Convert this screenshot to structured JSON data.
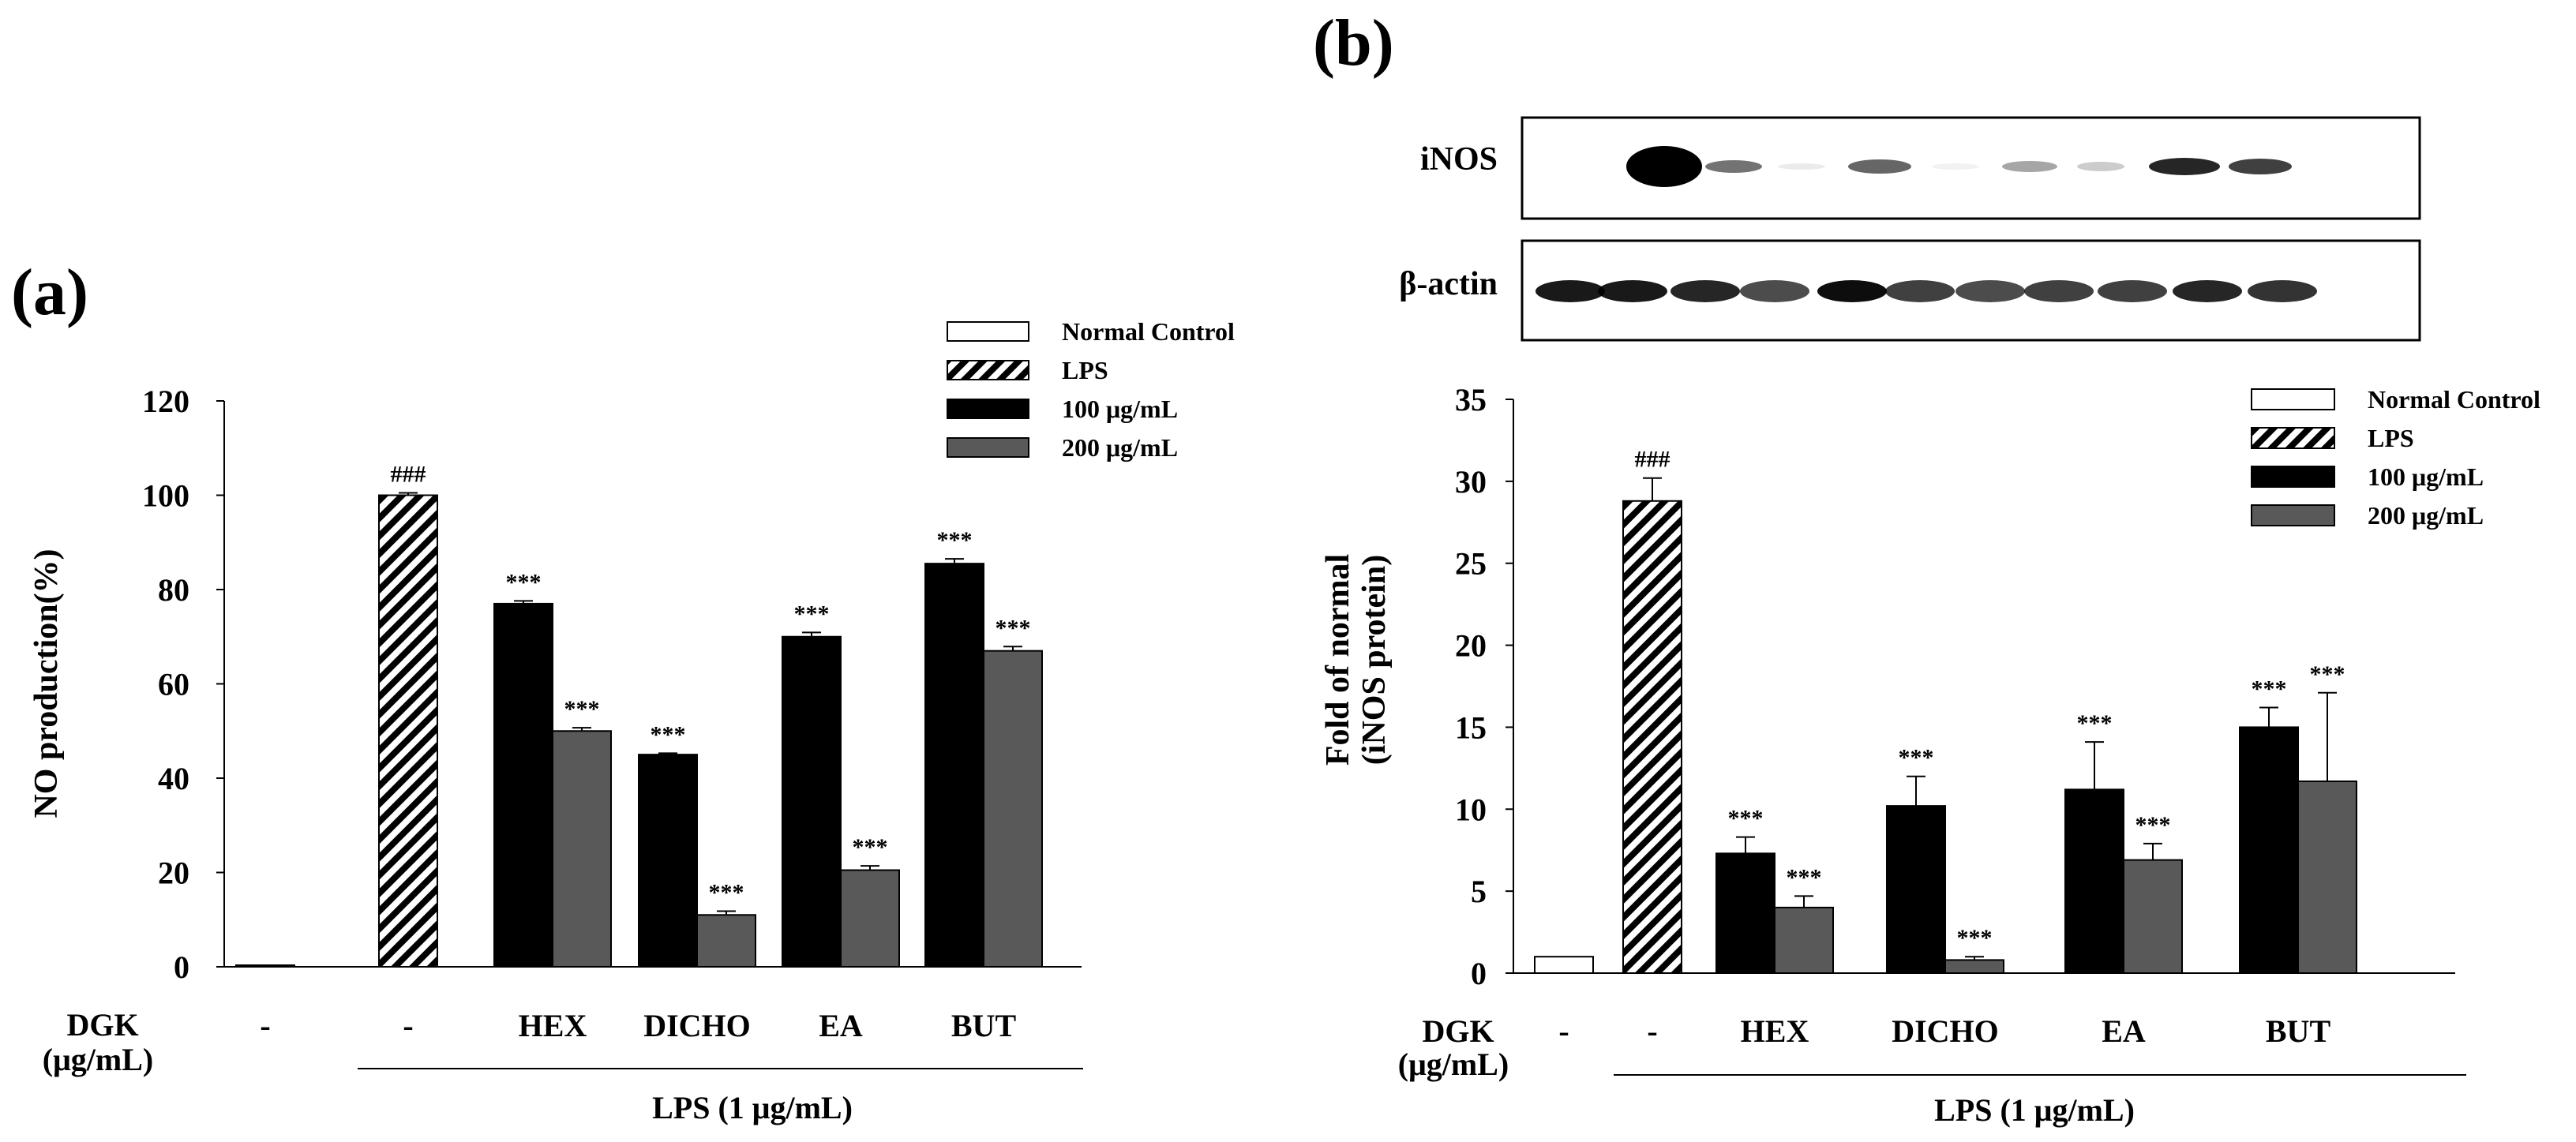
{
  "panel_a_label": "(a)",
  "panel_b_label": "(b)",
  "blot": {
    "row_labels": [
      "iNOS",
      "β-actin"
    ]
  },
  "colors": {
    "normal": "#ffffff",
    "lps": "hatched",
    "dose100": "#000000",
    "dose200": "#595959"
  },
  "chart_data": [
    {
      "id": "a",
      "type": "bar",
      "title": "",
      "ylabel": "NO production(%)",
      "ylim": [
        0,
        120
      ],
      "yticks": [
        0,
        20,
        40,
        60,
        80,
        100,
        120
      ],
      "legend": [
        "Normal Control",
        "LPS",
        "100 μg/mL",
        "200 μg/mL"
      ],
      "legend_position": "top-right",
      "row_label": [
        "DGK",
        "(μg/mL)"
      ],
      "groups": [
        "-",
        "-",
        "HEX",
        "DICHO",
        "EA",
        "BUT"
      ],
      "lps_label": "LPS (1 μg/mL)",
      "bars": [
        {
          "group": 0,
          "series": "Normal Control",
          "value": 0,
          "err": 0,
          "sig": ""
        },
        {
          "group": 1,
          "series": "LPS",
          "value": 100,
          "err": 0.5,
          "sig": "###"
        },
        {
          "group": 2,
          "series": "100 μg/mL",
          "value": 77,
          "err": 0.6,
          "sig": "***"
        },
        {
          "group": 2,
          "series": "200 μg/mL",
          "value": 50,
          "err": 0.7,
          "sig": "***"
        },
        {
          "group": 3,
          "series": "100 μg/mL",
          "value": 45,
          "err": 0.3,
          "sig": "***"
        },
        {
          "group": 3,
          "series": "200 μg/mL",
          "value": 11,
          "err": 0.8,
          "sig": "***"
        },
        {
          "group": 4,
          "series": "100 μg/mL",
          "value": 70,
          "err": 0.9,
          "sig": "***"
        },
        {
          "group": 4,
          "series": "200 μg/mL",
          "value": 20.5,
          "err": 0.9,
          "sig": "***"
        },
        {
          "group": 5,
          "series": "100 μg/mL",
          "value": 85.5,
          "err": 1.0,
          "sig": "***"
        },
        {
          "group": 5,
          "series": "200 μg/mL",
          "value": 67,
          "err": 0.9,
          "sig": "***"
        }
      ]
    },
    {
      "id": "b",
      "type": "bar",
      "title": "",
      "ylabel": [
        "Fold of normal",
        "(iNOS protein)"
      ],
      "ylim": [
        0,
        35
      ],
      "yticks": [
        0,
        5,
        10,
        15,
        20,
        25,
        30,
        35
      ],
      "legend": [
        "Normal Control",
        "LPS",
        "100 μg/mL",
        "200 μg/mL"
      ],
      "legend_position": "top-right",
      "row_label": [
        "DGK",
        "(μg/mL)"
      ],
      "groups": [
        "-",
        "-",
        "HEX",
        "DICHO",
        "EA",
        "BUT"
      ],
      "lps_label": "LPS (1 μg/mL)",
      "bars": [
        {
          "group": 0,
          "series": "Normal Control",
          "value": 1,
          "err": 0,
          "sig": ""
        },
        {
          "group": 1,
          "series": "LPS",
          "value": 28.8,
          "err": 1.4,
          "sig": "###"
        },
        {
          "group": 2,
          "series": "100 μg/mL",
          "value": 7.3,
          "err": 1.0,
          "sig": "***"
        },
        {
          "group": 2,
          "series": "200 μg/mL",
          "value": 4,
          "err": 0.7,
          "sig": "***"
        },
        {
          "group": 3,
          "series": "100 μg/mL",
          "value": 10.2,
          "err": 1.8,
          "sig": "***"
        },
        {
          "group": 3,
          "series": "200 μg/mL",
          "value": 0.8,
          "err": 0.2,
          "sig": "***"
        },
        {
          "group": 4,
          "series": "100 μg/mL",
          "value": 11.2,
          "err": 2.9,
          "sig": "***"
        },
        {
          "group": 4,
          "series": "200 μg/mL",
          "value": 6.9,
          "err": 1.0,
          "sig": "***"
        },
        {
          "group": 5,
          "series": "100 μg/mL",
          "value": 15,
          "err": 1.2,
          "sig": "***"
        },
        {
          "group": 5,
          "series": "200 μg/mL",
          "value": 11.7,
          "err": 5.4,
          "sig": "***"
        }
      ]
    }
  ]
}
